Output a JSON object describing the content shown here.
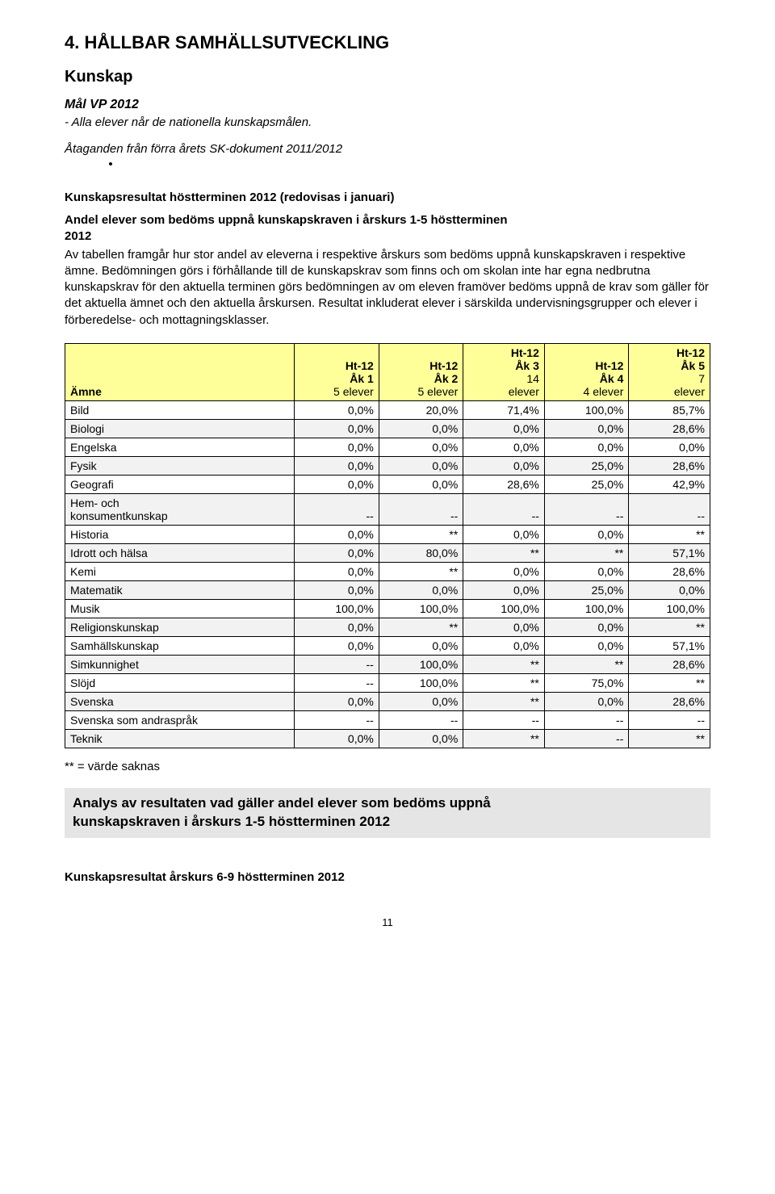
{
  "heading_main": "4. HÅLLBAR SAMHÄLLSUTVECKLING",
  "kunskap_heading": "Kunskap",
  "mal_heading": "Mål VP 2012",
  "mal_text": "- Alla elever når de nationella kunskapsmålen.",
  "ataganden_label": "Åtaganden från förra årets SK-dokument 2011/2012",
  "bullet_char": "•",
  "results_heading": "Kunskapsresultat höstterminen 2012 (redovisas i januari)",
  "andel_heading_line1": "Andel elever som bedöms uppnå kunskapskraven i årskurs 1-5 höstterminen",
  "andel_heading_line2": "2012",
  "paragraph": "Av tabellen framgår hur stor andel av eleverna i respektive årskurs som bedöms uppnå kunskapskraven i respektive ämne. Bedömningen görs i förhållande till de kunskapskrav som finns och om skolan inte har egna nedbrutna kunskapskrav för den aktuella terminen görs bedömningen av om eleven framöver bedöms uppnå de krav som gäller för det aktuella ämnet och den aktuella årskursen. Resultat inkluderat elever i särskilda undervisningsgrupper och elever i förberedelse- och mottagningsklasser.",
  "table": {
    "header_bg": "#ffff99",
    "row_even_bg": "#ffffff",
    "row_odd_bg": "#f2f2f2",
    "border_color": "#000000",
    "subject_header": "Ämne",
    "columns": [
      {
        "line1": "Ht-12",
        "line2": "Åk 1",
        "line3": "5 elever"
      },
      {
        "line1": "Ht-12",
        "line2": "Åk 2",
        "line3": "5 elever"
      },
      {
        "line1": "Ht-12",
        "line2": "Åk 3",
        "line3": "14",
        "line4": "elever"
      },
      {
        "line1": "Ht-12",
        "line2": "Åk 4",
        "line3": "4 elever"
      },
      {
        "line1": "Ht-12",
        "line2": "Åk 5",
        "line3": "7",
        "line4": "elever"
      }
    ],
    "rows": [
      {
        "subject": "Bild",
        "v": [
          "0,0%",
          "20,0%",
          "71,4%",
          "100,0%",
          "85,7%"
        ]
      },
      {
        "subject": "Biologi",
        "v": [
          "0,0%",
          "0,0%",
          "0,0%",
          "0,0%",
          "28,6%"
        ]
      },
      {
        "subject": "Engelska",
        "v": [
          "0,0%",
          "0,0%",
          "0,0%",
          "0,0%",
          "0,0%"
        ]
      },
      {
        "subject": "Fysik",
        "v": [
          "0,0%",
          "0,0%",
          "0,0%",
          "25,0%",
          "28,6%"
        ]
      },
      {
        "subject": "Geografi",
        "v": [
          "0,0%",
          "0,0%",
          "28,6%",
          "25,0%",
          "42,9%"
        ]
      },
      {
        "subject": "Hem- och\nkonsumentkunskap",
        "v": [
          "--",
          "--",
          "--",
          "--",
          "--"
        ]
      },
      {
        "subject": "Historia",
        "v": [
          "0,0%",
          "**",
          "0,0%",
          "0,0%",
          "**"
        ]
      },
      {
        "subject": "Idrott och hälsa",
        "v": [
          "0,0%",
          "80,0%",
          "**",
          "**",
          "57,1%"
        ]
      },
      {
        "subject": "Kemi",
        "v": [
          "0,0%",
          "**",
          "0,0%",
          "0,0%",
          "28,6%"
        ]
      },
      {
        "subject": "Matematik",
        "v": [
          "0,0%",
          "0,0%",
          "0,0%",
          "25,0%",
          "0,0%"
        ]
      },
      {
        "subject": "Musik",
        "v": [
          "100,0%",
          "100,0%",
          "100,0%",
          "100,0%",
          "100,0%"
        ]
      },
      {
        "subject": "Religionskunskap",
        "v": [
          "0,0%",
          "**",
          "0,0%",
          "0,0%",
          "**"
        ]
      },
      {
        "subject": "Samhällskunskap",
        "v": [
          "0,0%",
          "0,0%",
          "0,0%",
          "0,0%",
          "57,1%"
        ]
      },
      {
        "subject": "Simkunnighet",
        "v": [
          "--",
          "100,0%",
          "**",
          "**",
          "28,6%"
        ]
      },
      {
        "subject": "Slöjd",
        "v": [
          "--",
          "100,0%",
          "**",
          "75,0%",
          "**"
        ]
      },
      {
        "subject": "Svenska",
        "v": [
          "0,0%",
          "0,0%",
          "**",
          "0,0%",
          "28,6%"
        ]
      },
      {
        "subject": "Svenska som andraspråk",
        "v": [
          "--",
          "--",
          "--",
          "--",
          "--"
        ]
      },
      {
        "subject": "Teknik",
        "v": [
          "0,0%",
          "0,0%",
          "**",
          "--",
          "**"
        ]
      }
    ]
  },
  "footnote": "** = värde saknas",
  "grey_box_line1": "Analys av resultaten vad gäller andel elever som bedöms uppnå",
  "grey_box_line2": "kunskapskraven i årskurs 1-5 höstterminen 2012",
  "bottom_heading": "Kunskapsresultat årskurs 6-9 höstterminen 2012",
  "page_number": "11"
}
